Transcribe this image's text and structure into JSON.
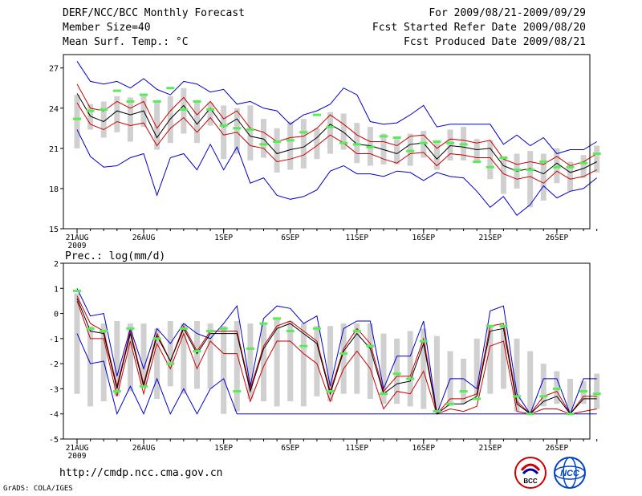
{
  "header": {
    "title": "DERF/NCC/BCC Monthly Forecast",
    "member_size": "Member Size=40",
    "variable": "Mean Surf. Temp.: °C",
    "period": "For 2009/08/21-2009/09/29",
    "started": "Fcst Started Refer Date 2009/08/20",
    "produced": "Fcst Produced Date 2009/08/21"
  },
  "footer": {
    "url": "http://cmdp.ncc.cma.gov.cn",
    "grads": "GrADS: COLA/IGES",
    "logo_left_text": "BCC",
    "logo_right_text": "NCC"
  },
  "colors": {
    "max_min": "#0000cc",
    "mean": "#000000",
    "quartile": "#cc0000",
    "box": "#d0d0d0",
    "marker": "#55ee55"
  },
  "chart_data": [
    {
      "type": "line",
      "title": "Mean Surf. Temp.: °C",
      "x_ticks": [
        "21AUG",
        "26AUG",
        "1SEP",
        "6SEP",
        "11SEP",
        "16SEP",
        "21SEP",
        "26SEP"
      ],
      "x_tick_days": [
        1,
        6,
        12,
        17,
        22,
        27,
        32,
        37
      ],
      "x_sub_label": "2009",
      "ylim": [
        15,
        28
      ],
      "yticks": [
        15,
        18,
        21,
        24,
        27
      ],
      "days": 40,
      "series": [
        {
          "name": "max",
          "values": [
            27.5,
            26.0,
            25.8,
            26.0,
            25.5,
            26.2,
            25.4,
            25.0,
            26.0,
            25.8,
            25.2,
            25.4,
            24.3,
            24.5,
            24.0,
            23.8,
            22.8,
            23.5,
            23.8,
            24.3,
            25.5,
            25.0,
            23.0,
            22.8,
            22.9,
            23.5,
            24.2,
            22.6,
            22.8,
            22.8,
            22.8,
            22.8,
            21.3,
            22.0,
            21.2,
            21.8,
            20.6,
            20.9,
            20.9,
            21.5
          ]
        },
        {
          "name": "upper_quartile",
          "values": [
            25.8,
            24.0,
            23.8,
            24.5,
            24.0,
            24.5,
            22.5,
            23.8,
            24.8,
            23.5,
            24.5,
            23.2,
            23.8,
            22.5,
            22.2,
            21.5,
            21.8,
            21.9,
            22.5,
            23.5,
            22.8,
            22.0,
            21.5,
            21.5,
            21.2,
            21.9,
            22.0,
            21.0,
            21.7,
            21.6,
            21.4,
            21.6,
            20.2,
            19.8,
            20.0,
            19.8,
            20.4,
            19.7,
            20.0,
            20.6
          ]
        },
        {
          "name": "mean",
          "values": [
            25.1,
            23.4,
            23.0,
            23.8,
            23.5,
            23.8,
            21.8,
            23.2,
            24.2,
            22.8,
            24.0,
            22.6,
            23.2,
            21.9,
            21.7,
            20.6,
            20.9,
            21.1,
            21.8,
            22.8,
            22.2,
            21.3,
            21.2,
            20.9,
            20.6,
            21.3,
            21.4,
            20.2,
            21.2,
            21.1,
            20.9,
            21.0,
            19.7,
            19.3,
            19.5,
            19.1,
            19.9,
            19.2,
            19.5,
            20.0
          ]
        },
        {
          "name": "lower_quartile",
          "values": [
            24.4,
            22.8,
            22.4,
            23.0,
            22.7,
            22.9,
            21.2,
            22.5,
            23.3,
            22.2,
            23.3,
            22.0,
            22.2,
            21.2,
            21.0,
            20.0,
            20.2,
            20.5,
            21.2,
            22.0,
            21.4,
            20.6,
            20.6,
            20.2,
            19.9,
            20.6,
            20.7,
            19.7,
            20.6,
            20.5,
            20.3,
            20.3,
            19.1,
            18.7,
            18.9,
            18.4,
            19.3,
            18.7,
            18.9,
            19.4
          ]
        },
        {
          "name": "min",
          "values": [
            22.4,
            20.4,
            19.6,
            19.7,
            20.3,
            20.6,
            17.5,
            20.3,
            20.6,
            19.4,
            21.3,
            19.4,
            21.1,
            18.4,
            18.8,
            17.5,
            17.2,
            17.4,
            17.9,
            19.3,
            19.7,
            19.1,
            19.1,
            18.9,
            19.3,
            19.2,
            18.6,
            19.2,
            18.9,
            18.8,
            17.8,
            16.6,
            17.4,
            16.0,
            16.8,
            18.2,
            17.3,
            17.8,
            18.0,
            18.8
          ]
        },
        {
          "name": "box_low",
          "values": [
            21.0,
            22.4,
            21.8,
            22.2,
            21.5,
            22.6,
            20.9,
            21.4,
            22.1,
            21.4,
            22.7,
            20.2,
            20.6,
            20.1,
            20.3,
            19.2,
            19.4,
            19.5,
            20.2,
            20.6,
            20.9,
            19.9,
            19.7,
            19.8,
            19.8,
            19.7,
            20.3,
            19.4,
            20.1,
            20.1,
            19.9,
            18.7,
            17.6,
            18.0,
            16.6,
            17.1,
            18.4,
            17.8,
            18.8,
            19.2
          ]
        },
        {
          "name": "box_high",
          "values": [
            25.0,
            24.3,
            24.5,
            24.9,
            24.8,
            25.1,
            24.5,
            24.9,
            25.5,
            24.6,
            24.4,
            24.2,
            24.0,
            24.2,
            23.2,
            22.5,
            23.0,
            23.2,
            22.5,
            23.7,
            23.6,
            22.9,
            22.6,
            22.1,
            21.7,
            22.1,
            22.3,
            21.6,
            22.4,
            22.6,
            21.7,
            21.6,
            20.4,
            20.6,
            20.8,
            20.6,
            21.0,
            20.0,
            20.5,
            21.2
          ]
        },
        {
          "name": "marker",
          "values": [
            23.2,
            23.8,
            23.9,
            25.3,
            24.5,
            25.0,
            24.5,
            25.5,
            23.9,
            24.5,
            23.9,
            22.7,
            22.5,
            22.4,
            21.3,
            21.5,
            21.6,
            22.2,
            23.5,
            22.6,
            21.4,
            21.3,
            21.1,
            21.9,
            21.8,
            20.8,
            21.4,
            21.5,
            21.4,
            21.3,
            20.0,
            19.6,
            20.3,
            19.4,
            19.4,
            20.0,
            19.6,
            19.6,
            19.9,
            20.6
          ]
        }
      ]
    },
    {
      "type": "line",
      "title": "Prec.: log(mm/d)",
      "x_ticks": [
        "21AUG",
        "26AUG",
        "1SEP",
        "6SEP",
        "11SEP",
        "16SEP",
        "21SEP",
        "26SEP"
      ],
      "x_tick_days": [
        1,
        6,
        12,
        17,
        22,
        27,
        32,
        37
      ],
      "x_sub_label": "2009",
      "ylim": [
        -5,
        2
      ],
      "yticks": [
        -5,
        -4,
        -3,
        -2,
        -1,
        0,
        1,
        2
      ],
      "days": 40,
      "series": [
        {
          "name": "max",
          "values": [
            1.0,
            -0.1,
            0.0,
            -2.5,
            -0.6,
            -2.2,
            -0.6,
            -1.2,
            -0.4,
            -0.8,
            -1.0,
            -0.4,
            0.3,
            -2.9,
            -0.2,
            0.3,
            0.2,
            -0.4,
            -0.1,
            -2.9,
            -0.6,
            -0.3,
            -0.3,
            -3.0,
            -1.7,
            -1.7,
            -0.3,
            -4.0,
            -2.6,
            -2.6,
            -3.0,
            0.1,
            0.3,
            -3.2,
            -4.0,
            -2.6,
            -2.6,
            -4.0,
            -2.6,
            -2.6
          ]
        },
        {
          "name": "upper_quartile",
          "values": [
            0.7,
            -0.4,
            -0.7,
            -2.9,
            -0.7,
            -2.8,
            -0.8,
            -1.9,
            -0.5,
            -1.5,
            -0.7,
            -0.7,
            -0.7,
            -3.0,
            -1.3,
            -0.5,
            -0.3,
            -0.7,
            -1.1,
            -3.1,
            -1.4,
            -0.6,
            -1.2,
            -3.1,
            -2.5,
            -2.5,
            -1.0,
            -4.0,
            -3.4,
            -3.4,
            -3.2,
            -0.5,
            -0.4,
            -3.5,
            -4.0,
            -3.3,
            -3.1,
            -4.0,
            -3.3,
            -3.3
          ]
        },
        {
          "name": "mean",
          "values": [
            0.6,
            -0.7,
            -0.8,
            -3.0,
            -0.8,
            -2.9,
            -0.9,
            -1.9,
            -0.6,
            -1.6,
            -0.8,
            -0.8,
            -0.8,
            -3.1,
            -1.4,
            -0.6,
            -0.4,
            -0.8,
            -1.2,
            -3.2,
            -1.5,
            -0.8,
            -1.4,
            -3.2,
            -2.8,
            -2.7,
            -1.2,
            -4.0,
            -3.6,
            -3.6,
            -3.3,
            -0.7,
            -0.6,
            -3.6,
            -4.0,
            -3.5,
            -3.3,
            -4.0,
            -3.4,
            -3.4
          ]
        },
        {
          "name": "lower_quartile",
          "values": [
            0.5,
            -1.0,
            -1.0,
            -3.3,
            -1.1,
            -3.2,
            -1.2,
            -2.2,
            -0.8,
            -2.2,
            -1.1,
            -1.6,
            -1.6,
            -3.5,
            -2.1,
            -1.1,
            -1.1,
            -1.6,
            -2.0,
            -3.5,
            -2.2,
            -1.5,
            -2.2,
            -3.8,
            -3.1,
            -3.2,
            -2.3,
            -4.0,
            -3.8,
            -3.9,
            -3.7,
            -1.3,
            -1.1,
            -3.9,
            -4.0,
            -3.8,
            -3.8,
            -4.0,
            -3.9,
            -3.8
          ]
        },
        {
          "name": "min",
          "values": [
            -0.8,
            -2.0,
            -1.9,
            -4.0,
            -2.9,
            -4.0,
            -2.6,
            -4.0,
            -3.0,
            -4.0,
            -3.0,
            -2.6,
            -4.0,
            -4.0,
            -4.0,
            -4.0,
            -4.0,
            -4.0,
            -4.0,
            -4.0,
            -4.0,
            -4.0,
            -4.0,
            -4.0,
            -4.0,
            -4.0,
            -4.0,
            -4.0,
            -4.0,
            -4.0,
            -4.0,
            -4.0,
            -4.0,
            -4.0,
            -4.0,
            -4.0,
            -4.0,
            -4.0,
            -4.0,
            -4.0
          ]
        },
        {
          "name": "box_low",
          "values": [
            -3.2,
            -3.7,
            -3.5,
            -3.3,
            -3.1,
            -2.9,
            -3.4,
            -2.9,
            -3.2,
            -3.0,
            -3.0,
            -4.0,
            -3.9,
            -3.4,
            -3.5,
            -3.7,
            -3.5,
            -3.7,
            -3.3,
            -3.5,
            -3.2,
            -3.2,
            -3.4,
            -3.6,
            -3.6,
            -3.7,
            -3.8,
            -3.9,
            -3.7,
            -3.6,
            -3.3,
            -3.2,
            -3.0,
            -3.9,
            -4.0,
            -3.7,
            -3.6,
            -3.9,
            -3.6,
            -3.8
          ]
        },
        {
          "name": "box_high",
          "values": [
            0.8,
            -0.5,
            -0.4,
            -0.3,
            -0.4,
            -0.4,
            -0.6,
            -0.3,
            -0.4,
            -0.3,
            -0.4,
            -0.5,
            -0.3,
            -0.4,
            -0.4,
            -0.2,
            -0.3,
            -0.4,
            -0.5,
            -0.5,
            -0.4,
            -0.4,
            -0.4,
            -0.8,
            -1.0,
            -0.7,
            -0.6,
            -0.9,
            -1.5,
            -1.8,
            -1.0,
            -0.5,
            -0.5,
            -1.0,
            -1.5,
            -2.0,
            -2.3,
            -2.6,
            -2.7,
            -2.4
          ]
        },
        {
          "name": "marker",
          "values": [
            0.9,
            -0.6,
            -0.7,
            -3.1,
            -0.6,
            -2.9,
            -1.0,
            -2.0,
            -0.6,
            -1.5,
            -0.7,
            -0.6,
            -3.1,
            -1.4,
            -0.4,
            -0.2,
            -0.7,
            -1.3,
            -0.6,
            -3.1,
            -1.6,
            -0.7,
            -1.3,
            -3.2,
            -2.4,
            -2.6,
            -1.1,
            -3.9,
            -3.6,
            -3.1,
            -3.4,
            -0.5,
            -0.5,
            -3.3,
            -4.0,
            -3.3,
            -3.0,
            -4.0,
            -3.1,
            -3.2
          ]
        }
      ]
    }
  ]
}
